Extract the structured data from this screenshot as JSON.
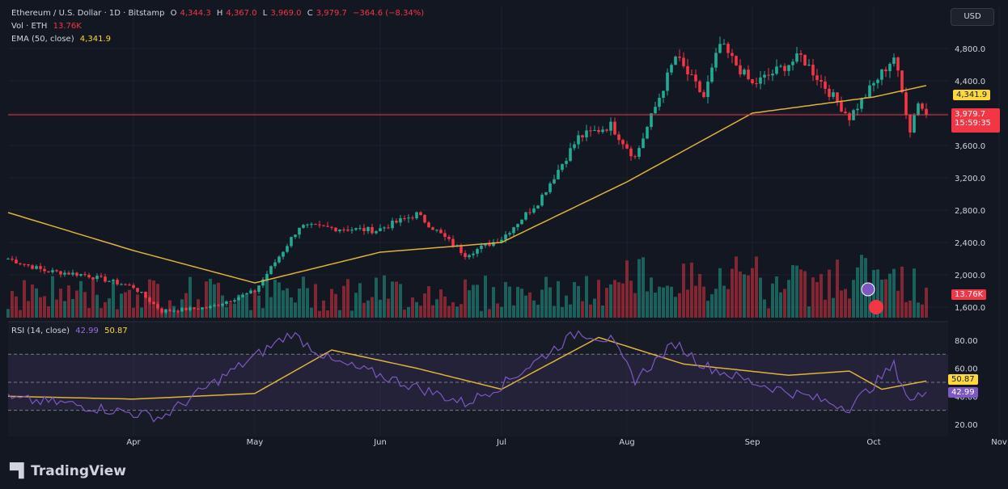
{
  "header": {
    "symbol": "Ethereum / U.S. Dollar · 1D · Bitstamp",
    "o_label": "O",
    "o_value": "4,344.3",
    "h_label": "H",
    "h_value": "4,367.0",
    "l_label": "L",
    "l_value": "3,969.0",
    "c_label": "C",
    "c_value": "3,979.7",
    "change": "−364.6 (−8.34%)",
    "vol_label": "Vol · ETH",
    "vol_value": "13.76K",
    "ema_label": "EMA (50, close)",
    "ema_value": "4,341.9",
    "rsi_label": "RSI (14, close)",
    "rsi_value": "42.99",
    "rsi_ma_value": "50.87"
  },
  "currency_button": "USD",
  "brand": "TradingView",
  "colors": {
    "up": "#22ab94",
    "down": "#f23645",
    "ema": "#e0b13d",
    "rsi": "#7e57c2",
    "background": "#131722"
  },
  "price_tags": {
    "ema": "4,341.9",
    "last": "3,979.7",
    "countdown": "15:59:35",
    "volume": "13.76K"
  },
  "rsi_tags": {
    "ma": "50.87",
    "rsi": "42.99"
  },
  "chart_data": [
    {
      "type": "candlestick",
      "title": "Ethereum / U.S. Dollar · 1D · Bitstamp",
      "x_ticks": [
        "Apr",
        "May",
        "Jun",
        "Jul",
        "Aug",
        "Sep",
        "Oct",
        "Nov"
      ],
      "y_ticks": [
        1600,
        2000,
        2400,
        2800,
        3200,
        3600,
        4000,
        4400,
        4800
      ],
      "y_tick_labels": [
        "1,600.0",
        "2,000.0",
        "2,400.0",
        "2,800.0",
        "3,200.0",
        "3,600.0",
        "4,000.0",
        "4,400.0",
        "4,800.0"
      ],
      "ylim": [
        1560,
        5000
      ],
      "anchor_points": [
        {
          "date": "2025-03-01",
          "close": 2200
        },
        {
          "date": "2025-03-10",
          "close": 2050
        },
        {
          "date": "2025-03-20",
          "close": 2000
        },
        {
          "date": "2025-04-01",
          "close": 1850
        },
        {
          "date": "2025-04-08",
          "close": 1550
        },
        {
          "date": "2025-04-20",
          "close": 1600
        },
        {
          "date": "2025-05-01",
          "close": 1800
        },
        {
          "date": "2025-05-08",
          "close": 2300
        },
        {
          "date": "2025-05-12",
          "close": 2600
        },
        {
          "date": "2025-05-31",
          "close": 2550
        },
        {
          "date": "2025-06-10",
          "close": 2750
        },
        {
          "date": "2025-06-22",
          "close": 2250
        },
        {
          "date": "2025-07-01",
          "close": 2450
        },
        {
          "date": "2025-07-10",
          "close": 2900
        },
        {
          "date": "2025-07-20",
          "close": 3700
        },
        {
          "date": "2025-07-28",
          "close": 3850
        },
        {
          "date": "2025-08-03",
          "close": 3450
        },
        {
          "date": "2025-08-13",
          "close": 4700
        },
        {
          "date": "2025-08-20",
          "close": 4200
        },
        {
          "date": "2025-08-24",
          "close": 4850
        },
        {
          "date": "2025-09-01",
          "close": 4350
        },
        {
          "date": "2025-09-13",
          "close": 4700
        },
        {
          "date": "2025-09-25",
          "close": 3950
        },
        {
          "date": "2025-10-06",
          "close": 4700
        },
        {
          "date": "2025-10-10",
          "close": 3800
        },
        {
          "date": "2025-10-12",
          "close": 4150
        },
        {
          "date": "2025-10-14",
          "close": 3980
        }
      ],
      "ema_50": [
        {
          "date": "2025-03-01",
          "value": 2770
        },
        {
          "date": "2025-04-01",
          "value": 2300
        },
        {
          "date": "2025-05-01",
          "value": 1900
        },
        {
          "date": "2025-06-01",
          "value": 2280
        },
        {
          "date": "2025-07-01",
          "value": 2400
        },
        {
          "date": "2025-08-01",
          "value": 3150
        },
        {
          "date": "2025-09-01",
          "value": 4000
        },
        {
          "date": "2025-10-01",
          "value": 4200
        },
        {
          "date": "2025-10-14",
          "value": 4342
        }
      ],
      "last_price": 3979.7,
      "ema_last": 4341.9
    },
    {
      "type": "bar",
      "title": "Vol · ETH",
      "last_value": "13.76K"
    },
    {
      "type": "line",
      "title": "RSI (14, close)",
      "y_ticks": [
        20,
        40,
        60,
        80
      ],
      "y_tick_labels": [
        "20.00",
        "40.00",
        "60.00",
        "80.00"
      ],
      "ylim": [
        17,
        90
      ],
      "bands": [
        30,
        50,
        70
      ],
      "rsi": [
        {
          "date": "2025-03-01",
          "value": 38
        },
        {
          "date": "2025-03-15",
          "value": 35
        },
        {
          "date": "2025-04-08",
          "value": 25
        },
        {
          "date": "2025-04-20",
          "value": 48
        },
        {
          "date": "2025-05-10",
          "value": 85
        },
        {
          "date": "2025-05-20",
          "value": 65
        },
        {
          "date": "2025-06-01",
          "value": 55
        },
        {
          "date": "2025-06-22",
          "value": 35
        },
        {
          "date": "2025-07-01",
          "value": 48
        },
        {
          "date": "2025-07-20",
          "value": 86
        },
        {
          "date": "2025-07-28",
          "value": 80
        },
        {
          "date": "2025-08-03",
          "value": 52
        },
        {
          "date": "2025-08-13",
          "value": 78
        },
        {
          "date": "2025-08-20",
          "value": 62
        },
        {
          "date": "2025-09-01",
          "value": 50
        },
        {
          "date": "2025-09-25",
          "value": 32
        },
        {
          "date": "2025-10-06",
          "value": 62
        },
        {
          "date": "2025-10-10",
          "value": 36
        },
        {
          "date": "2025-10-14",
          "value": 42.99
        }
      ],
      "rsi_ma": [
        {
          "date": "2025-03-01",
          "value": 40
        },
        {
          "date": "2025-04-01",
          "value": 38
        },
        {
          "date": "2025-05-01",
          "value": 42
        },
        {
          "date": "2025-05-20",
          "value": 73
        },
        {
          "date": "2025-06-10",
          "value": 60
        },
        {
          "date": "2025-07-01",
          "value": 45
        },
        {
          "date": "2025-07-25",
          "value": 82
        },
        {
          "date": "2025-08-15",
          "value": 63
        },
        {
          "date": "2025-09-10",
          "value": 55
        },
        {
          "date": "2025-09-25",
          "value": 58
        },
        {
          "date": "2025-10-03",
          "value": 45
        },
        {
          "date": "2025-10-14",
          "value": 50.87
        }
      ]
    }
  ]
}
